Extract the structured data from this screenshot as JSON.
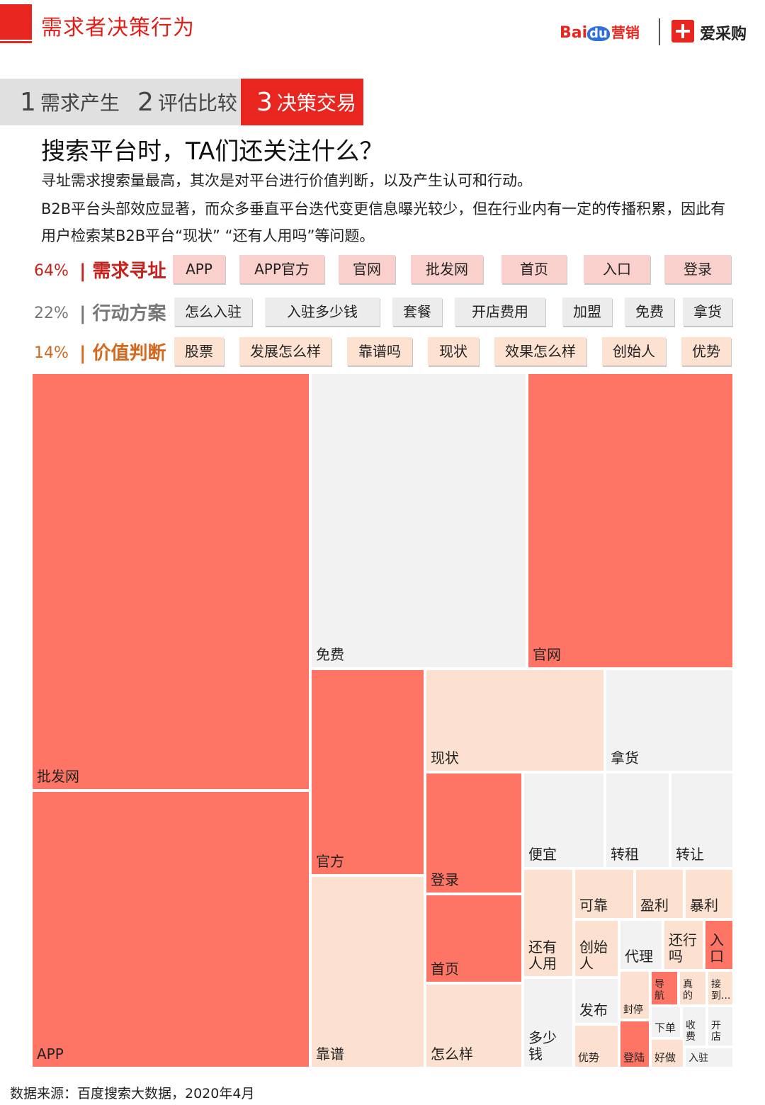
{
  "header": {
    "title": "需求者决策行为",
    "logo_baidu": "Bai",
    "logo_du": "du",
    "logo_yingxiao": "营销",
    "logo_aicaigou": "爱采购"
  },
  "steps": [
    {
      "num": "1",
      "label": "需求产生"
    },
    {
      "num": "2",
      "label": "评估比较"
    },
    {
      "num": "3",
      "label": "决策交易"
    }
  ],
  "headline": "搜索平台时，TA们还关注什么？",
  "paragraphs": [
    "寻址需求搜索量最高，其次是对平台进行价值判断，以及产生认可和行动。",
    "B2B平台头部效应显著，而众多垂直平台迭代变更信息曝光较少，但在行业内有一定的传播积累，因此有用户检索某B2B平台“现状”  “还有人用吗”等问题。"
  ],
  "categories": [
    {
      "pct": "64%",
      "name": "| 需求寻址",
      "tags": [
        "APP",
        "APP官方",
        "官网",
        "批发网",
        "首页",
        "入口",
        "登录"
      ]
    },
    {
      "pct": "22%",
      "name": "| 行动方案",
      "tags": [
        "怎么入驻",
        "入驻多少钱",
        "套餐",
        "开店费用",
        "加盟",
        "免费",
        "拿货"
      ]
    },
    {
      "pct": "14%",
      "name": "| 价值判断",
      "tags": [
        "股票",
        "发展怎么样",
        "靠谱吗",
        "现状",
        "效果怎么样",
        "创始人",
        "优势"
      ]
    }
  ],
  "colors": {
    "需求寻址": "#fe7566",
    "行动方案": "#f2f2f2",
    "价值判断": "#fde1d0",
    "accent": "#e8261f"
  },
  "chart_data": {
    "type": "treemap",
    "groups": [
      "需求寻址",
      "行动方案",
      "价值判断"
    ],
    "cells": [
      {
        "label": "批发网",
        "group": "需求寻址"
      },
      {
        "label": "APP",
        "group": "需求寻址"
      },
      {
        "label": "免费",
        "group": "行动方案"
      },
      {
        "label": "官网",
        "group": "需求寻址"
      },
      {
        "label": "官方",
        "group": "需求寻址"
      },
      {
        "label": "靠谱",
        "group": "价值判断"
      },
      {
        "label": "现状",
        "group": "价值判断"
      },
      {
        "label": "拿货",
        "group": "行动方案"
      },
      {
        "label": "登录",
        "group": "需求寻址"
      },
      {
        "label": "首页",
        "group": "需求寻址"
      },
      {
        "label": "怎么样",
        "group": "价值判断"
      },
      {
        "label": "便宜",
        "group": "行动方案"
      },
      {
        "label": "转租",
        "group": "行动方案"
      },
      {
        "label": "转让",
        "group": "行动方案"
      },
      {
        "label": "还有\n人用",
        "group": "价值判断"
      },
      {
        "label": "可靠",
        "group": "价值判断"
      },
      {
        "label": "盈利",
        "group": "价值判断"
      },
      {
        "label": "暴利",
        "group": "价值判断"
      },
      {
        "label": "创始\n人",
        "group": "价值判断"
      },
      {
        "label": "代理",
        "group": "行动方案"
      },
      {
        "label": "还行\n吗",
        "group": "价值判断"
      },
      {
        "label": "入\n口",
        "group": "需求寻址"
      },
      {
        "label": "多少\n钱",
        "group": "行动方案"
      },
      {
        "label": "发布",
        "group": "行动方案"
      },
      {
        "label": "优势",
        "group": "价值判断"
      },
      {
        "label": "封停",
        "group": "价值判断"
      },
      {
        "label": "导\n航",
        "group": "需求寻址"
      },
      {
        "label": "真\n的",
        "group": "价值判断"
      },
      {
        "label": "接\n到...",
        "group": "价值判断"
      },
      {
        "label": "登陆",
        "group": "需求寻址"
      },
      {
        "label": "下单",
        "group": "行动方案"
      },
      {
        "label": "收\n费",
        "group": "行动方案"
      },
      {
        "label": "开\n店",
        "group": "行动方案"
      },
      {
        "label": "好做",
        "group": "价值判断"
      },
      {
        "label": "入驻",
        "group": "行动方案"
      }
    ]
  },
  "source": "数据来源：百度搜索大数据，2020年4月"
}
